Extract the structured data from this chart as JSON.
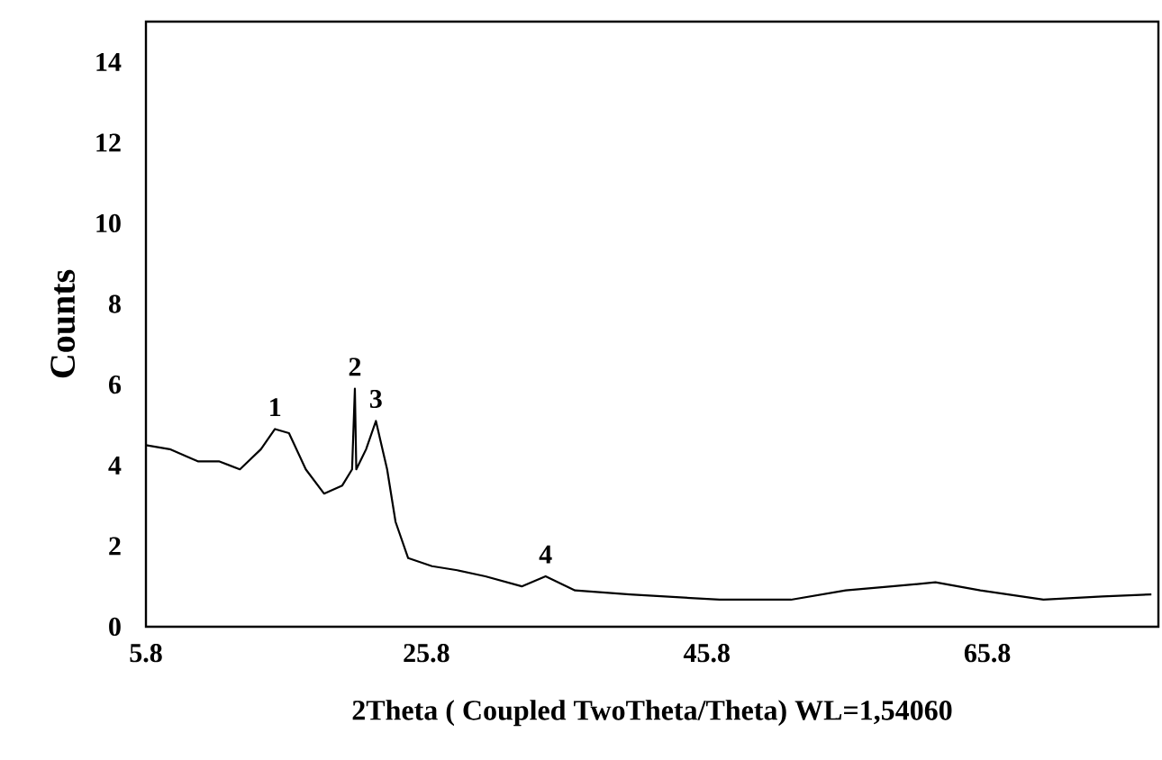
{
  "chart_data": {
    "type": "line",
    "xlabel": "2Theta ( Coupled  TwoTheta/Theta) WL=1,54060",
    "ylabel": "Counts",
    "x": [
      5.8,
      7.5,
      9.5,
      11.0,
      12.5,
      14.0,
      15.0,
      16.0,
      17.2,
      18.5,
      19.8,
      20.5,
      20.7,
      20.8,
      21.5,
      22.2,
      23.0,
      23.6,
      24.5,
      26.2,
      28.0,
      30.0,
      32.6,
      34.3,
      35.2,
      36.4,
      40.3,
      46.7,
      51.8,
      55.7,
      59.0,
      62.1,
      65.3,
      69.8,
      74.0,
      77.5
    ],
    "values": [
      4.5,
      4.4,
      4.1,
      4.1,
      3.9,
      4.4,
      4.9,
      4.8,
      3.9,
      3.3,
      3.5,
      3.9,
      5.9,
      3.9,
      4.4,
      5.1,
      3.9,
      2.6,
      1.7,
      1.5,
      1.4,
      1.25,
      1.0,
      1.25,
      1.1,
      0.9,
      0.8,
      0.67,
      0.67,
      0.9,
      1.0,
      1.1,
      0.9,
      0.67,
      0.75,
      0.8
    ],
    "color": "#000000",
    "marker": "none",
    "line_style": "solid",
    "xlim": [
      5.8,
      78
    ],
    "ylim": [
      0,
      15
    ],
    "xticks": [
      5.8,
      25.8,
      45.8,
      65.8
    ],
    "yticks": [
      0,
      2,
      4,
      6,
      8,
      10,
      12,
      14
    ],
    "annotations": [
      {
        "text": "1",
        "x": 15.0,
        "y": 4.9
      },
      {
        "text": "2",
        "x": 20.7,
        "y": 5.9
      },
      {
        "text": "3",
        "x": 22.2,
        "y": 5.1
      },
      {
        "text": "4",
        "x": 34.3,
        "y": 1.25
      }
    ]
  }
}
